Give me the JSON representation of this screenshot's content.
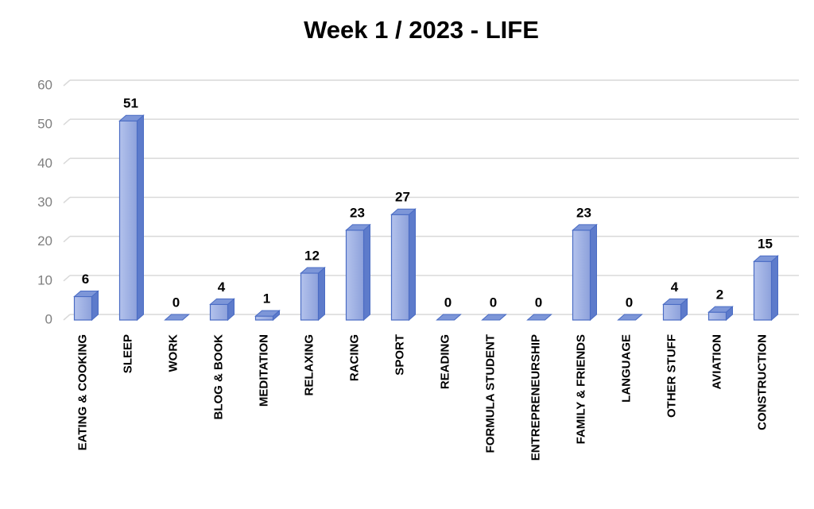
{
  "chart_data": {
    "type": "bar3d",
    "title": "Week 1 / 2023 - LIFE",
    "categories": [
      "EATING & COOKING",
      "SLEEP",
      "WORK",
      "BLOG & BOOK",
      "MEDITATION",
      "RELAXING",
      "RACING",
      "SPORT",
      "READING",
      "FORMULA STUDENT",
      "ENTREPRENEURSHIP",
      "FAMILY & FRIENDS",
      "LANGUAGE",
      "OTHER STUFF",
      "AVIATION",
      "CONSTRUCTION"
    ],
    "values": [
      6,
      51,
      0,
      4,
      1,
      12,
      23,
      27,
      0,
      0,
      0,
      23,
      0,
      4,
      2,
      15
    ],
    "color": "#8fa3dd",
    "ylim": [
      0,
      60
    ],
    "yticks": [
      0,
      10,
      20,
      30,
      40,
      50,
      60
    ],
    "grid": true
  }
}
